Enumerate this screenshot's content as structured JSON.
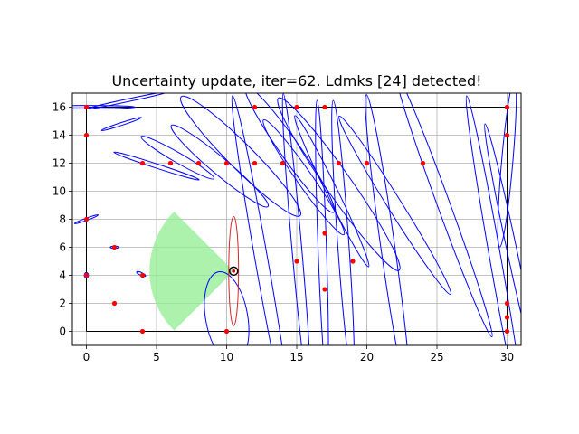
{
  "chart_data": {
    "type": "scatter",
    "title": "Uncertainty update, iter=62. Ldmks [24] detected!",
    "xlabel": "",
    "ylabel": "",
    "xlim": [
      -1,
      31
    ],
    "ylim": [
      -1,
      17
    ],
    "grid": true,
    "x_ticks": [
      0,
      5,
      10,
      15,
      20,
      25,
      30
    ],
    "y_ticks": [
      0,
      2,
      4,
      6,
      8,
      10,
      12,
      14,
      16
    ],
    "colors": {
      "landmark": "#ff0000",
      "estimate_ellipse": "#0000ff",
      "robot_ellipse": "#d62728",
      "fov": "#90ee90",
      "walls": "#000000",
      "grid": "#b0b0b0"
    },
    "walls": [
      [
        [
          0,
          0
        ],
        [
          30,
          0
        ]
      ],
      [
        [
          0,
          0
        ],
        [
          0,
          16
        ]
      ],
      [
        [
          0,
          16
        ],
        [
          30,
          16
        ]
      ],
      [
        [
          30,
          0
        ],
        [
          30,
          16
        ]
      ]
    ],
    "landmarks": [
      [
        0,
        4
      ],
      [
        0,
        8
      ],
      [
        0,
        14
      ],
      [
        0,
        16
      ],
      [
        2,
        2
      ],
      [
        2,
        6
      ],
      [
        4,
        0
      ],
      [
        4,
        4
      ],
      [
        4,
        12
      ],
      [
        6,
        12
      ],
      [
        8,
        12
      ],
      [
        10,
        0
      ],
      [
        10,
        12
      ],
      [
        12,
        12
      ],
      [
        12,
        16
      ],
      [
        14,
        12
      ],
      [
        15,
        5
      ],
      [
        15,
        16
      ],
      [
        17,
        3
      ],
      [
        17,
        7
      ],
      [
        17,
        16
      ],
      [
        18,
        12
      ],
      [
        19,
        5
      ],
      [
        20,
        12
      ],
      [
        24,
        12
      ],
      [
        30,
        0
      ],
      [
        30,
        1
      ],
      [
        30,
        2
      ],
      [
        30,
        14
      ],
      [
        30,
        16
      ]
    ],
    "landmark_estimates": [
      [
        0,
        4,
        0.15,
        0.2,
        0
      ],
      [
        0,
        8,
        0.9,
        0.08,
        20
      ],
      [
        0,
        16,
        3.5,
        0.12,
        0
      ],
      [
        2,
        6,
        0.3,
        0.08,
        0
      ],
      [
        3.9,
        4.1,
        0.35,
        0.1,
        -25
      ],
      [
        2.5,
        14.8,
        1.5,
        0.1,
        18
      ],
      [
        3,
        16.5,
        3.0,
        0.1,
        12
      ],
      [
        5,
        11.8,
        3.2,
        0.15,
        -18
      ],
      [
        6.5,
        12.4,
        3.0,
        0.35,
        -30
      ],
      [
        9.5,
        11.8,
        4.5,
        0.6,
        -40
      ],
      [
        11,
        12.5,
        6,
        0.9,
        -45
      ],
      [
        14.5,
        13,
        5.5,
        0.7,
        -55
      ],
      [
        15.5,
        11,
        5,
        0.55,
        -55
      ],
      [
        18,
        10.5,
        7.5,
        0.9,
        -55
      ],
      [
        22,
        9,
        7.5,
        0.5,
        -58
      ],
      [
        17.5,
        10,
        6,
        0.4,
        -64
      ],
      [
        12.5,
        5,
        12,
        0.45,
        -80
      ],
      [
        15,
        6,
        11,
        0.35,
        -85
      ],
      [
        16.8,
        6.5,
        10,
        0.3,
        -88
      ],
      [
        18.3,
        6.5,
        10,
        0.4,
        -86
      ],
      [
        21.5,
        6,
        11,
        0.5,
        -82
      ],
      [
        25.5,
        9,
        10,
        0.45,
        -70
      ],
      [
        29.2,
        5,
        12,
        0.4,
        -80
      ],
      [
        30.3,
        6,
        9,
        0.35,
        -78
      ],
      [
        30,
        12,
        6,
        0.4,
        -95
      ]
    ],
    "robot": {
      "x": 10.5,
      "y": 4.3,
      "heading_deg": 180
    },
    "robot_ellipse": [
      10.5,
      4.3,
      3.9,
      0.35,
      90
    ],
    "robot_estimate_ellipse": [
      10,
      1,
      3.3,
      1.5,
      100
    ],
    "fov": {
      "range": 6,
      "half_angle_deg": 45
    }
  }
}
